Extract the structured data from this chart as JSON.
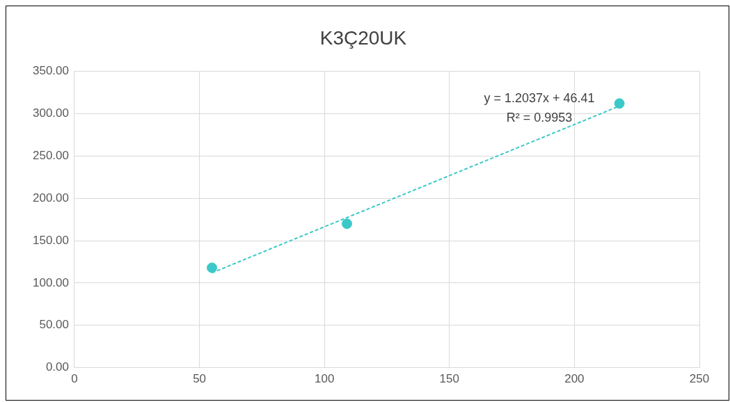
{
  "chart_data": {
    "type": "scatter",
    "title": "K3Ç20UK",
    "series": [
      {
        "color": "#3cc8c8",
        "x": [
          55,
          109,
          218
        ],
        "values": [
          118,
          170,
          312
        ],
        "marker": "circle"
      },
      {
        "type": "line",
        "color": "#3cc8c8",
        "x": [
          55,
          218
        ],
        "values": [
          112,
          309
        ],
        "line_style": "dashed",
        "marker": "none"
      }
    ],
    "xlim": [
      0,
      250
    ],
    "xticks": [
      0,
      50,
      100,
      150,
      200,
      250
    ],
    "ylim": [
      0,
      350
    ],
    "yticks": [
      {
        "value": 0,
        "label": "0.00"
      },
      {
        "value": 50,
        "label": "50.00"
      },
      {
        "value": 100,
        "label": "100.00"
      },
      {
        "value": 150,
        "label": "150.00"
      },
      {
        "value": 200,
        "label": "200.00"
      },
      {
        "value": 250,
        "label": "250.00"
      },
      {
        "value": 300,
        "label": "300.00"
      },
      {
        "value": 350,
        "label": "350.00"
      }
    ],
    "grid": true,
    "legend": false,
    "annotations": [
      "y = 1.2037x + 46.41",
      "R² = 0.9953"
    ]
  }
}
